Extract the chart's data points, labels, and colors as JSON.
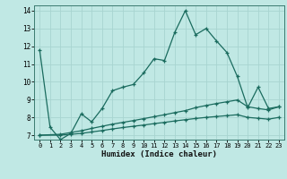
{
  "xlabel": "Humidex (Indice chaleur)",
  "bg_color": "#c0e8e4",
  "grid_color": "#a8d4d0",
  "line_color": "#1a6b5e",
  "xlim": [
    -0.5,
    23.5
  ],
  "ylim": [
    6.75,
    14.3
  ],
  "yticks": [
    7,
    8,
    9,
    10,
    11,
    12,
    13,
    14
  ],
  "xticks": [
    0,
    1,
    2,
    3,
    4,
    5,
    6,
    7,
    8,
    9,
    10,
    11,
    12,
    13,
    14,
    15,
    16,
    17,
    18,
    19,
    20,
    21,
    22,
    23
  ],
  "line1_x": [
    0,
    1,
    2,
    3,
    4,
    5,
    6,
    7,
    8,
    9,
    10,
    11,
    12,
    13,
    14,
    15,
    16,
    17,
    18,
    19,
    20,
    21,
    22,
    23
  ],
  "line1_y": [
    11.8,
    7.45,
    6.75,
    7.1,
    8.2,
    7.75,
    8.5,
    9.5,
    9.7,
    9.85,
    10.5,
    11.3,
    11.2,
    12.8,
    14.0,
    12.65,
    13.0,
    12.3,
    11.65,
    10.3,
    8.55,
    9.7,
    8.5,
    8.6
  ],
  "line2_x": [
    0,
    2,
    3,
    4,
    5,
    6,
    7,
    8,
    9,
    10,
    11,
    12,
    13,
    14,
    15,
    16,
    17,
    18,
    19,
    20,
    21,
    22,
    23
  ],
  "line2_y": [
    7.0,
    7.05,
    7.15,
    7.25,
    7.38,
    7.5,
    7.62,
    7.72,
    7.82,
    7.93,
    8.04,
    8.15,
    8.27,
    8.38,
    8.55,
    8.67,
    8.78,
    8.88,
    8.98,
    8.6,
    8.5,
    8.42,
    8.6
  ],
  "line3_x": [
    0,
    2,
    3,
    4,
    5,
    6,
    7,
    8,
    9,
    10,
    11,
    12,
    13,
    14,
    15,
    16,
    17,
    18,
    19,
    20,
    21,
    22,
    23
  ],
  "line3_y": [
    7.0,
    7.0,
    7.05,
    7.1,
    7.18,
    7.26,
    7.35,
    7.43,
    7.5,
    7.57,
    7.65,
    7.72,
    7.8,
    7.87,
    7.94,
    8.0,
    8.05,
    8.1,
    8.15,
    8.0,
    7.95,
    7.9,
    8.0
  ],
  "marker_size": 3,
  "lw": 0.9
}
